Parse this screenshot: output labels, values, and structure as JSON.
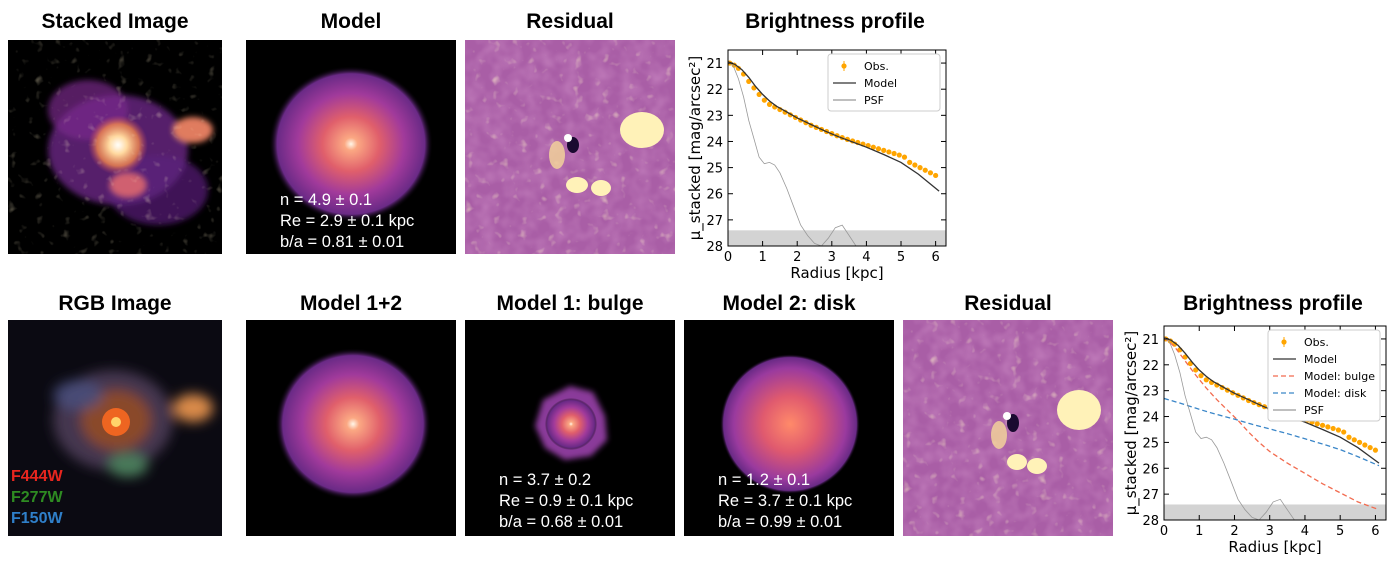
{
  "row1": {
    "panels": [
      {
        "title": "Stacked Image",
        "kind": "galaxy"
      },
      {
        "title": "Model",
        "kind": "model"
      },
      {
        "title": "Residual",
        "kind": "residual"
      }
    ],
    "model_stats": [
      "n = 4.9 ± 0.1",
      "Re = 2.9 ± 0.1 kpc",
      "b/a = 0.81 ± 0.01"
    ]
  },
  "row2": {
    "panels": [
      {
        "title": "RGB Image",
        "kind": "rgb"
      },
      {
        "title": "Model 1+2",
        "kind": "model"
      },
      {
        "title": "Model 1: bulge",
        "kind": "bulge"
      },
      {
        "title": "Model 2: disk",
        "kind": "disk"
      },
      {
        "title": "Residual",
        "kind": "residual"
      }
    ],
    "bulge_stats": [
      "n = 3.7 ± 0.2",
      "Re = 0.9 ± 0.1 kpc",
      "b/a = 0.68 ± 0.01"
    ],
    "disk_stats": [
      "n = 1.2 ± 0.1",
      "Re = 3.7 ± 0.1 kpc",
      "b/a = 0.99 ± 0.01"
    ],
    "filters": [
      {
        "label": "F444W",
        "color": "#e8261f"
      },
      {
        "label": "F277W",
        "color": "#2e8b22"
      },
      {
        "label": "F150W",
        "color": "#2f7fc9"
      }
    ]
  },
  "colors": {
    "obs": "#ffa500",
    "model": "#333333",
    "psf": "#999999",
    "bulge": "#f26b4f",
    "disk": "#3a86c8",
    "band": "#d3d3d3"
  },
  "chart_data": [
    {
      "type": "line",
      "title": "Brightness profile",
      "xlabel": "Radius [kpc]",
      "ylabel": "μ_stacked [mag/arcsec²]",
      "xlim": [
        0,
        6.3
      ],
      "ylim": [
        28,
        20.5
      ],
      "xticks": [
        "0",
        "1",
        "2",
        "3",
        "4",
        "5",
        "6"
      ],
      "yticks": [
        "21",
        "22",
        "23",
        "24",
        "25",
        "26",
        "27",
        "28"
      ],
      "legend_position": "top-right",
      "shaded_band": [
        27.4,
        28
      ],
      "series": [
        {
          "name": "Obs.",
          "style": "points",
          "x": [
            0.05,
            0.18,
            0.3,
            0.45,
            0.6,
            0.75,
            0.9,
            1.05,
            1.2,
            1.35,
            1.5,
            1.65,
            1.8,
            1.95,
            2.1,
            2.25,
            2.4,
            2.55,
            2.7,
            2.85,
            3.0,
            3.15,
            3.3,
            3.45,
            3.6,
            3.75,
            3.9,
            4.05,
            4.2,
            4.35,
            4.5,
            4.65,
            4.8,
            4.95,
            5.1,
            5.25,
            5.4,
            5.55,
            5.7,
            5.85,
            6.0
          ],
          "y": [
            21.0,
            21.08,
            21.2,
            21.42,
            21.7,
            21.95,
            22.2,
            22.42,
            22.58,
            22.68,
            22.78,
            22.88,
            22.98,
            23.08,
            23.18,
            23.28,
            23.38,
            23.46,
            23.54,
            23.62,
            23.7,
            23.78,
            23.85,
            23.92,
            23.98,
            24.04,
            24.1,
            24.16,
            24.22,
            24.28,
            24.34,
            24.4,
            24.46,
            24.52,
            24.6,
            24.8,
            24.9,
            25.0,
            25.1,
            25.2,
            25.3
          ]
        },
        {
          "name": "Model",
          "style": "line",
          "x": [
            0,
            0.2,
            0.4,
            0.6,
            0.8,
            1.0,
            1.2,
            1.4,
            1.6,
            1.8,
            2.0,
            2.4,
            2.8,
            3.2,
            3.6,
            4.0,
            4.5,
            5.0,
            5.5,
            6.1
          ],
          "y": [
            20.95,
            21.05,
            21.25,
            21.55,
            21.9,
            22.2,
            22.45,
            22.65,
            22.8,
            22.95,
            23.1,
            23.35,
            23.6,
            23.82,
            24.02,
            24.22,
            24.5,
            24.8,
            25.25,
            25.9
          ]
        },
        {
          "name": "PSF",
          "style": "line",
          "x": [
            0,
            0.15,
            0.3,
            0.45,
            0.6,
            0.75,
            0.9,
            1.05,
            1.2,
            1.35,
            1.5,
            1.7,
            1.9,
            2.1,
            2.3,
            2.5,
            2.7,
            2.9,
            3.1,
            3.3,
            3.5,
            3.7
          ],
          "y": [
            20.95,
            21.1,
            21.6,
            22.3,
            23.2,
            23.9,
            24.6,
            24.85,
            24.8,
            24.9,
            25.2,
            25.8,
            26.5,
            27.2,
            27.6,
            27.9,
            28.0,
            27.7,
            27.3,
            27.2,
            27.6,
            28.0
          ]
        }
      ]
    },
    {
      "type": "line",
      "title": "Brightness profile",
      "xlabel": "Radius [kpc]",
      "ylabel": "μ_stacked [mag/arcsec²]",
      "xlim": [
        0,
        6.3
      ],
      "ylim": [
        28,
        20.5
      ],
      "xticks": [
        "0",
        "1",
        "2",
        "3",
        "4",
        "5",
        "6"
      ],
      "yticks": [
        "21",
        "22",
        "23",
        "24",
        "25",
        "26",
        "27",
        "28"
      ],
      "legend_position": "top-right",
      "shaded_band": [
        27.4,
        28
      ],
      "series": [
        {
          "name": "Obs.",
          "style": "points",
          "x": [
            0.05,
            0.18,
            0.3,
            0.45,
            0.6,
            0.75,
            0.9,
            1.05,
            1.2,
            1.35,
            1.5,
            1.65,
            1.8,
            1.95,
            2.1,
            2.25,
            2.4,
            2.55,
            2.7,
            2.85,
            3.0,
            3.15,
            3.3,
            3.45,
            3.6,
            3.75,
            3.9,
            4.05,
            4.2,
            4.35,
            4.5,
            4.65,
            4.8,
            4.95,
            5.1,
            5.25,
            5.4,
            5.55,
            5.7,
            5.85,
            6.0
          ],
          "y": [
            21.0,
            21.08,
            21.2,
            21.42,
            21.7,
            21.95,
            22.2,
            22.42,
            22.58,
            22.68,
            22.78,
            22.88,
            22.98,
            23.08,
            23.18,
            23.28,
            23.38,
            23.46,
            23.54,
            23.62,
            23.7,
            23.78,
            23.85,
            23.92,
            23.98,
            24.04,
            24.1,
            24.16,
            24.22,
            24.28,
            24.34,
            24.4,
            24.46,
            24.52,
            24.6,
            24.8,
            24.9,
            25.0,
            25.1,
            25.2,
            25.3
          ]
        },
        {
          "name": "Model",
          "style": "line",
          "x": [
            0,
            0.2,
            0.4,
            0.6,
            0.8,
            1.0,
            1.2,
            1.4,
            1.6,
            1.8,
            2.0,
            2.4,
            2.8,
            3.2,
            3.6,
            4.0,
            4.5,
            5.0,
            5.5,
            6.1
          ],
          "y": [
            20.95,
            21.05,
            21.25,
            21.55,
            21.9,
            22.2,
            22.45,
            22.65,
            22.8,
            22.95,
            23.1,
            23.35,
            23.6,
            23.82,
            24.02,
            24.22,
            24.5,
            24.8,
            25.2,
            25.8
          ]
        },
        {
          "name": "Model: bulge",
          "style": "dashed",
          "x": [
            0,
            0.3,
            0.6,
            0.9,
            1.2,
            1.5,
            1.8,
            2.1,
            2.4,
            2.7,
            3.0,
            3.5,
            4.0,
            4.5,
            5.0,
            5.5,
            6.1
          ],
          "y": [
            20.95,
            21.3,
            21.85,
            22.4,
            22.9,
            23.35,
            23.75,
            24.15,
            24.6,
            25.0,
            25.35,
            25.8,
            26.2,
            26.6,
            26.95,
            27.3,
            27.6
          ]
        },
        {
          "name": "Model: disk",
          "style": "dashed",
          "x": [
            0,
            0.5,
            1,
            1.5,
            2,
            2.5,
            3,
            3.5,
            4,
            4.5,
            5,
            5.5,
            6.1
          ],
          "y": [
            23.3,
            23.5,
            23.72,
            23.92,
            24.1,
            24.3,
            24.48,
            24.66,
            24.86,
            25.06,
            25.28,
            25.55,
            25.9
          ]
        },
        {
          "name": "PSF",
          "style": "line",
          "x": [
            0,
            0.15,
            0.3,
            0.45,
            0.6,
            0.75,
            0.9,
            1.05,
            1.2,
            1.35,
            1.5,
            1.7,
            1.9,
            2.1,
            2.3,
            2.5,
            2.7,
            2.9,
            3.1,
            3.3,
            3.5,
            3.7
          ],
          "y": [
            20.95,
            21.1,
            21.6,
            22.3,
            23.2,
            23.9,
            24.6,
            24.85,
            24.8,
            24.9,
            25.2,
            25.8,
            26.5,
            27.2,
            27.6,
            27.9,
            28.0,
            27.7,
            27.3,
            27.2,
            27.6,
            28.0
          ]
        }
      ]
    }
  ]
}
